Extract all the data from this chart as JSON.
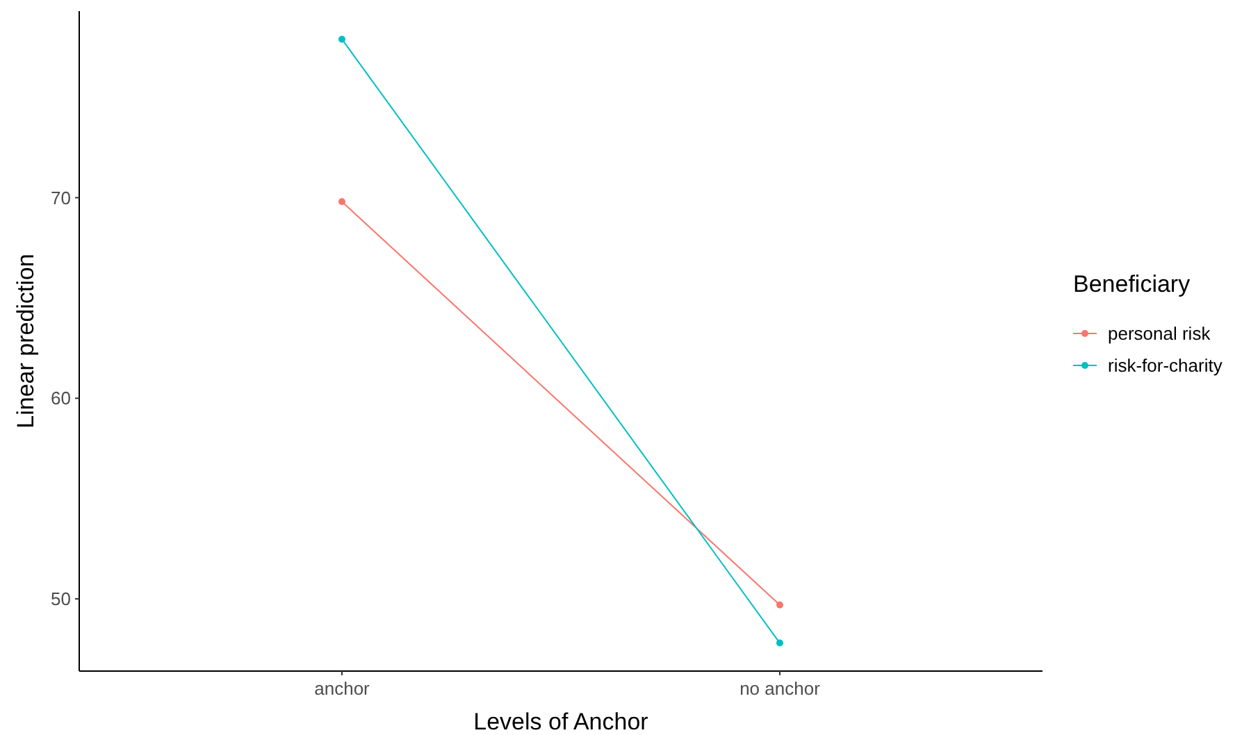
{
  "chart_data": {
    "type": "line",
    "xlabel": "Levels of Anchor",
    "ylabel": "Linear prediction",
    "legend_title": "Beneficiary",
    "categories": [
      "anchor",
      "no anchor"
    ],
    "series": [
      {
        "name": "personal risk",
        "color": "#f8766d",
        "values": [
          69.8,
          49.7
        ]
      },
      {
        "name": "risk-for-charity",
        "color": "#00bfc4",
        "values": [
          77.9,
          47.8
        ]
      }
    ],
    "ylim": [
      46.4,
      79.3
    ],
    "yticks": [
      50,
      60,
      70
    ],
    "grid": false,
    "legend": "right",
    "marker": "circle",
    "line_style": "solid"
  }
}
